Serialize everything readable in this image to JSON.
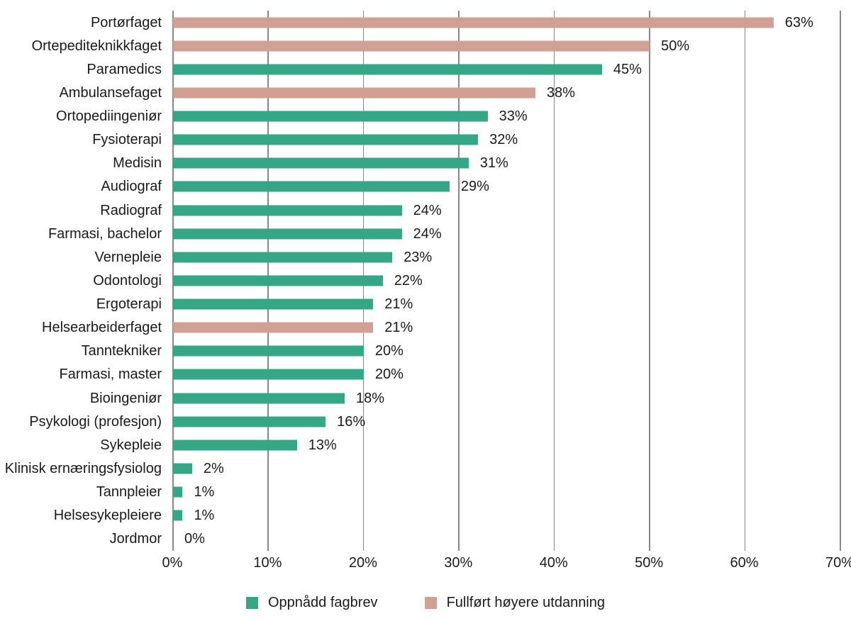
{
  "chart_data": {
    "type": "bar",
    "orientation": "horizontal",
    "title": "",
    "xlabel": "",
    "ylabel": "",
    "xlim": [
      0,
      70
    ],
    "x_ticks": [
      "0%",
      "10%",
      "20%",
      "30%",
      "40%",
      "50%",
      "60%",
      "70%"
    ],
    "grid": true,
    "legend_position": "bottom",
    "legend": [
      {
        "id": "fagbrev",
        "label": "Oppnådd fagbrev",
        "color": "#36a786"
      },
      {
        "id": "hoyere",
        "label": "Fullført høyere utdanning",
        "color": "#d0a095"
      }
    ],
    "rows": [
      {
        "label": "Portørfaget",
        "value": 63,
        "display": "63%",
        "series": "hoyere"
      },
      {
        "label": "Ortepediteknikkfaget",
        "value": 50,
        "display": "50%",
        "series": "hoyere"
      },
      {
        "label": "Paramedics",
        "value": 45,
        "display": "45%",
        "series": "fagbrev"
      },
      {
        "label": "Ambulansefaget",
        "value": 38,
        "display": "38%",
        "series": "hoyere"
      },
      {
        "label": "Ortopediingeniør",
        "value": 33,
        "display": "33%",
        "series": "fagbrev"
      },
      {
        "label": "Fysioterapi",
        "value": 32,
        "display": "32%",
        "series": "fagbrev"
      },
      {
        "label": "Medisin",
        "value": 31,
        "display": "31%",
        "series": "fagbrev"
      },
      {
        "label": "Audiograf",
        "value": 29,
        "display": "29%",
        "series": "fagbrev"
      },
      {
        "label": "Radiograf",
        "value": 24,
        "display": "24%",
        "series": "fagbrev"
      },
      {
        "label": "Farmasi, bachelor",
        "value": 24,
        "display": "24%",
        "series": "fagbrev"
      },
      {
        "label": "Vernepleie",
        "value": 23,
        "display": "23%",
        "series": "fagbrev"
      },
      {
        "label": "Odontologi",
        "value": 22,
        "display": "22%",
        "series": "fagbrev"
      },
      {
        "label": "Ergoterapi",
        "value": 21,
        "display": "21%",
        "series": "fagbrev"
      },
      {
        "label": "Helsearbeiderfaget",
        "value": 21,
        "display": "21%",
        "series": "hoyere"
      },
      {
        "label": "Tanntekniker",
        "value": 20,
        "display": "20%",
        "series": "fagbrev"
      },
      {
        "label": "Farmasi, master",
        "value": 20,
        "display": "20%",
        "series": "fagbrev"
      },
      {
        "label": "Bioingeniør",
        "value": 18,
        "display": "18%",
        "series": "fagbrev"
      },
      {
        "label": "Psykologi (profesjon)",
        "value": 16,
        "display": "16%",
        "series": "fagbrev"
      },
      {
        "label": "Sykepleie",
        "value": 13,
        "display": "13%",
        "series": "fagbrev"
      },
      {
        "label": "Klinisk ernæringsfysiolog",
        "value": 2,
        "display": "2%",
        "series": "fagbrev"
      },
      {
        "label": "Tannpleier",
        "value": 1,
        "display": "1%",
        "series": "fagbrev"
      },
      {
        "label": "Helsesykepleiere",
        "value": 1,
        "display": "1%",
        "series": "fagbrev"
      },
      {
        "label": "Jordmor",
        "value": 0,
        "display": "0%",
        "series": "fagbrev"
      }
    ]
  },
  "style": {
    "gridline_color": "#878787",
    "text_color": "#1a1a1a",
    "background": "#ffffff"
  }
}
